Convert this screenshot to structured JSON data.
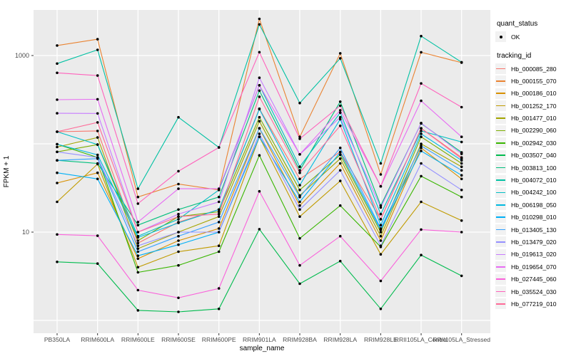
{
  "figure": {
    "panel_bg": "#EBEBEB",
    "grid_color": "#FFFFFF",
    "axis_text_color": "#4D4D4D",
    "tick_color": "#333333",
    "point_color": "#000000"
  },
  "legend": {
    "quant_status_title": "quant_status",
    "quant_status_items": [
      {
        "label": "OK"
      }
    ],
    "tracking_id_title": "tracking_id"
  },
  "chart_data": {
    "type": "line",
    "xlabel": "sample_name",
    "ylabel": "FPKM + 1",
    "y_scale": "log10",
    "ylim": [
      0.75,
      3300
    ],
    "y_tick_labels": [
      "1000",
      "10"
    ],
    "y_tick_values": [
      1000,
      10
    ],
    "grid_y_values": [
      1,
      10,
      100,
      1000
    ],
    "grid": true,
    "legend_position": "right",
    "marker": "point",
    "quant_status": "OK",
    "categories": [
      "PB350LA",
      "RRIM600LA",
      "RRIM600LE",
      "RRIM600SE",
      "RRIM600PE",
      "RRIM901LA",
      "RRIM928BA",
      "RRIM928LA",
      "RRIM928LE",
      "RRII105LA_Control",
      "RRII105LA_Stressed"
    ],
    "series": [
      {
        "name": "Hb_000085_280",
        "color": "#F8766D",
        "values": [
          137,
          140,
          7.5,
          13,
          18,
          250,
          40,
          81,
          14,
          150,
          70
        ]
      },
      {
        "name": "Hb_000155_070",
        "color": "#EA8331",
        "values": [
          1300,
          1530,
          25,
          35,
          30,
          2600,
          120,
          1060,
          45,
          1090,
          830
        ]
      },
      {
        "name": "Hb_000186_010",
        "color": "#D89000",
        "values": [
          36,
          47,
          5,
          8,
          11,
          150,
          20,
          60,
          8,
          90,
          40
        ]
      },
      {
        "name": "Hb_001252_170",
        "color": "#C09B00",
        "values": [
          22,
          59,
          4,
          6,
          7,
          120,
          15,
          38,
          5.6,
          22,
          13.5
        ]
      },
      {
        "name": "Hb_001477_010",
        "color": "#A3A500",
        "values": [
          92,
          118,
          6.5,
          10,
          15,
          180,
          26,
          68,
          9,
          100,
          55
        ]
      },
      {
        "name": "Hb_002290_060",
        "color": "#7CAE00",
        "values": [
          81,
          98,
          8,
          15,
          17,
          200,
          30,
          75,
          10,
          120,
          60
        ]
      },
      {
        "name": "Hb_002942_030",
        "color": "#39B600",
        "values": [
          99,
          70,
          3.5,
          4.2,
          6,
          74,
          8.5,
          20,
          6.8,
          43,
          25
        ]
      },
      {
        "name": "Hb_003507_040",
        "color": "#00BB4E",
        "values": [
          4.6,
          4.4,
          1.3,
          1.25,
          1.35,
          10.8,
          2.6,
          4.7,
          1.35,
          5.5,
          3.2
        ]
      },
      {
        "name": "Hb_003813_100",
        "color": "#00BF7D",
        "values": [
          65,
          60,
          12,
          18,
          25,
          400,
          50,
          300,
          20,
          170,
          80
        ]
      },
      {
        "name": "Hb_004072_010",
        "color": "#00C1A3",
        "values": [
          811,
          1160,
          31,
          200,
          91,
          2250,
          290,
          930,
          60,
          1660,
          840
        ]
      },
      {
        "name": "Hb_004242_100",
        "color": "#00BFC4",
        "values": [
          137,
          98,
          9,
          14,
          30,
          460,
          55,
          225,
          16,
          140,
          105
        ]
      },
      {
        "name": "Hb_006198_050",
        "color": "#00BAE0",
        "values": [
          99,
          75,
          8.7,
          12.7,
          18,
          247,
          34,
          190,
          12,
          130,
          65
        ]
      },
      {
        "name": "Hb_010298_010",
        "color": "#00B0F6",
        "values": [
          47,
          40,
          5.4,
          7.2,
          10,
          120,
          22,
          80,
          10.6,
          83,
          44
        ]
      },
      {
        "name": "Hb_013405_130",
        "color": "#35A2FF",
        "values": [
          65,
          68,
          6,
          9,
          13,
          150,
          25,
          90,
          11,
          95,
          50
        ]
      },
      {
        "name": "Hb_013479_020",
        "color": "#9590FF",
        "values": [
          81,
          70,
          7,
          10,
          10,
          130,
          18,
          50,
          7,
          60,
          30
        ]
      },
      {
        "name": "Hb_019613_020",
        "color": "#C77CFF",
        "values": [
          222,
          221,
          10,
          16,
          22,
          560,
          76,
          200,
          19,
          172,
          77
        ]
      },
      {
        "name": "Hb_019654_070",
        "color": "#E76BF3",
        "values": [
          316,
          320,
          13,
          31,
          31,
          460,
          76,
          240,
          33,
          307,
          120
        ]
      },
      {
        "name": "Hb_027445_060",
        "color": "#FA62DB",
        "values": [
          9.4,
          9.1,
          2.2,
          1.8,
          2.3,
          29,
          4.2,
          9,
          2.8,
          10.7,
          10
        ]
      },
      {
        "name": "Hb_035524_030",
        "color": "#FF62BC",
        "values": [
          637,
          594,
          21,
          49,
          91,
          1091,
          114,
          270,
          33,
          483,
          260
        ]
      },
      {
        "name": "Hb_077219_010",
        "color": "#FF6A98",
        "values": [
          137,
          175,
          10,
          15,
          16,
          341,
          47,
          160,
          14,
          150,
          68
        ]
      }
    ]
  }
}
